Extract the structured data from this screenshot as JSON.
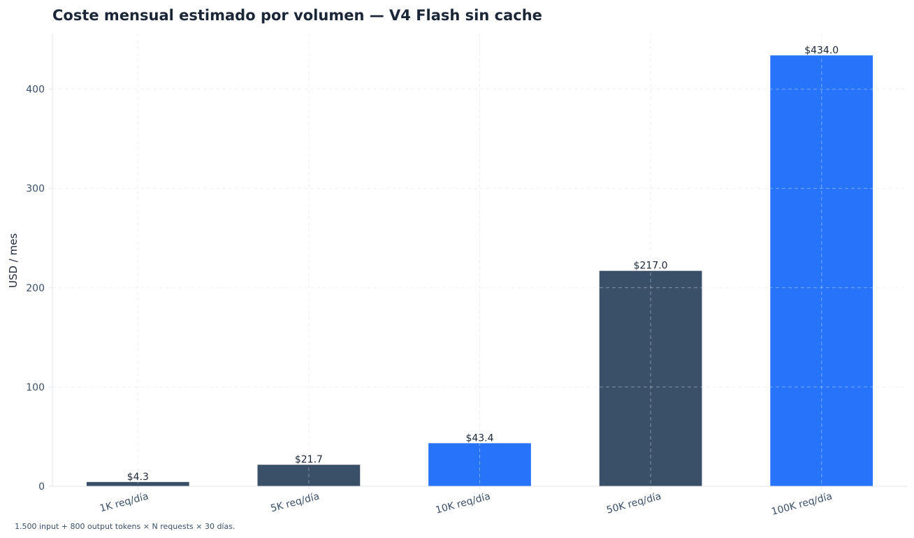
{
  "chart_data": {
    "type": "bar",
    "title": "Coste mensual estimado por volumen — V4 Flash sin cache",
    "xlabel": "",
    "ylabel": "USD / mes",
    "categories": [
      "1K req/día",
      "5K req/día",
      "10K req/día",
      "50K req/día",
      "100K req/día"
    ],
    "values": [
      4.34,
      21.7,
      43.4,
      217.0,
      434.0
    ],
    "value_labels": [
      "$4.3",
      "$21.7",
      "$43.4",
      "$217.0",
      "$434.0"
    ],
    "highlighted": [
      false,
      false,
      true,
      false,
      true
    ],
    "ylim": [
      0,
      456
    ],
    "yticks": [
      0,
      100,
      200,
      300,
      400
    ],
    "grid": true,
    "colors": {
      "default": "#3a4f68",
      "highlight": "#2774fb",
      "grid": "#e6e9ee",
      "axis": "#e1e4ea"
    }
  },
  "footnote": "1.500 input + 800 output tokens × N requests × 30 días."
}
